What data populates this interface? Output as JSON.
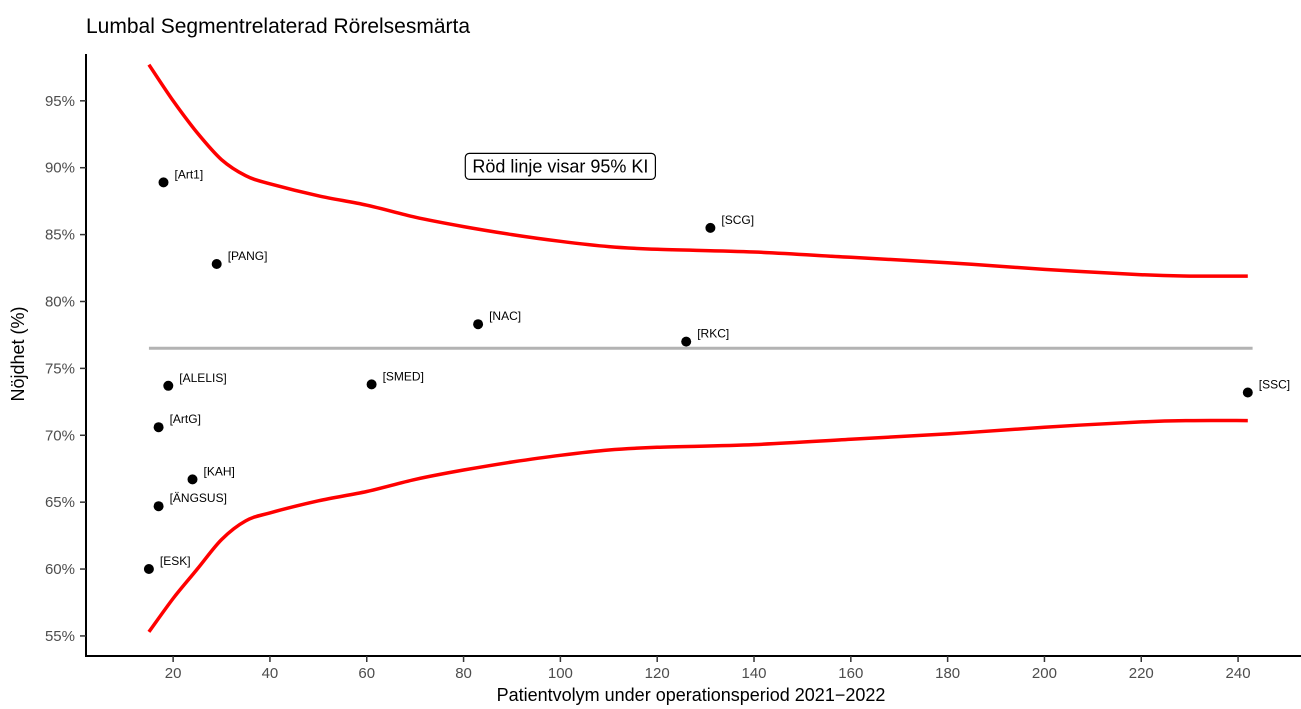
{
  "chart_data": {
    "type": "scatter",
    "title": "Lumbal Segmentrelaterad Rörelsesmärta",
    "xlabel": "Patientvolym under operationsperiod 2021−2022",
    "ylabel": "Nöjdhet (%)",
    "xlim": [
      2,
      253
    ],
    "ylim": [
      53.5,
      98.5
    ],
    "x_ticks": [
      20,
      40,
      60,
      80,
      100,
      120,
      140,
      160,
      180,
      200,
      220,
      240
    ],
    "y_ticks": [
      55,
      60,
      65,
      70,
      75,
      80,
      85,
      90,
      95
    ],
    "y_tick_suffix": "%",
    "grid": false,
    "annotation": "Röd linje visar 95% KI",
    "annotation_position": {
      "x": 100,
      "y": 90.1
    },
    "mean_line": {
      "y": 76.5,
      "color": "#b3b3b3"
    },
    "ci_color": "#ff0000",
    "point_color": "#000000",
    "points": [
      {
        "label": "[Art1]",
        "x": 18,
        "y": 88.9
      },
      {
        "label": "[PANG]",
        "x": 29,
        "y": 82.8
      },
      {
        "label": "[SCG]",
        "x": 131,
        "y": 85.5
      },
      {
        "label": "[NAC]",
        "x": 83,
        "y": 78.3
      },
      {
        "label": "[RKC]",
        "x": 126,
        "y": 77.0
      },
      {
        "label": "[ALELIS]",
        "x": 19,
        "y": 73.7
      },
      {
        "label": "[SMED]",
        "x": 61,
        "y": 73.8
      },
      {
        "label": "[SSC]",
        "x": 242,
        "y": 73.2
      },
      {
        "label": "[ArtG]",
        "x": 17,
        "y": 70.6
      },
      {
        "label": "[KAH]",
        "x": 24,
        "y": 66.7
      },
      {
        "label": "[ÄNGSUS]",
        "x": 17,
        "y": 64.7
      },
      {
        "label": "[ESK]",
        "x": 15,
        "y": 60.0
      }
    ],
    "upper_ci": {
      "x": [
        15,
        20,
        25,
        30,
        35,
        40,
        50,
        60,
        70,
        80,
        90,
        100,
        110,
        120,
        140,
        160,
        180,
        200,
        220,
        230,
        242
      ],
      "y": [
        97.7,
        95.0,
        92.6,
        90.6,
        89.4,
        88.8,
        87.9,
        87.2,
        86.3,
        85.6,
        85.0,
        84.5,
        84.1,
        83.9,
        83.7,
        83.3,
        82.9,
        82.4,
        82.0,
        81.9,
        81.9
      ]
    },
    "lower_ci": {
      "x": [
        15,
        20,
        25,
        30,
        35,
        40,
        50,
        60,
        70,
        80,
        90,
        100,
        110,
        120,
        140,
        160,
        180,
        200,
        220,
        230,
        242
      ],
      "y": [
        55.3,
        57.8,
        60.0,
        62.2,
        63.6,
        64.2,
        65.1,
        65.8,
        66.7,
        67.4,
        68.0,
        68.5,
        68.9,
        69.1,
        69.3,
        69.7,
        70.1,
        70.6,
        71.0,
        71.1,
        71.1
      ]
    }
  }
}
